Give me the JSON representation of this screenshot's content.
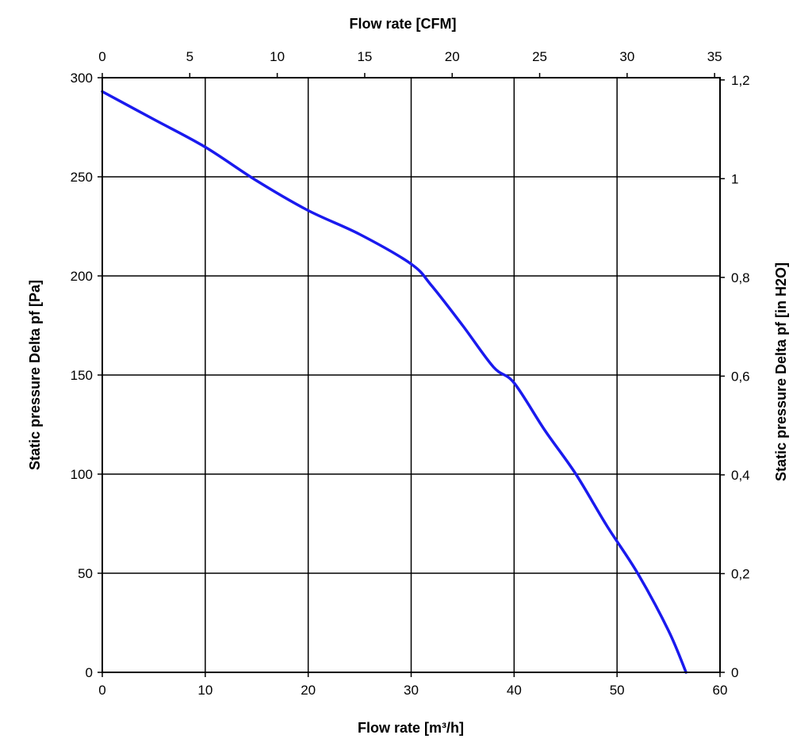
{
  "chart_data": {
    "type": "line",
    "x_bottom": {
      "label": "Flow rate [m³/h]",
      "range": [
        0,
        60
      ],
      "ticks": [
        0,
        10,
        20,
        30,
        40,
        50,
        60
      ],
      "tick_labels": [
        "0",
        "10",
        "20",
        "30",
        "40",
        "50",
        "60"
      ]
    },
    "x_top": {
      "label": "Flow rate [CFM]",
      "range": [
        0,
        35.31
      ],
      "ticks": [
        0,
        5,
        10,
        15,
        20,
        25,
        30,
        35
      ],
      "tick_labels": [
        "0",
        "5",
        "10",
        "15",
        "20",
        "25",
        "30",
        "35"
      ]
    },
    "y_left": {
      "label": "Static pressure Delta pf [Pa]",
      "range": [
        0,
        300
      ],
      "ticks": [
        0,
        50,
        100,
        150,
        200,
        250,
        300
      ],
      "tick_labels": [
        "0",
        "50",
        "100",
        "150",
        "200",
        "250",
        "300"
      ]
    },
    "y_right": {
      "label": "Static pressure Delta pf [in H2O]",
      "range": [
        0,
        1.2045
      ],
      "ticks": [
        0,
        0.2,
        0.4,
        0.6,
        0.8,
        1,
        1.2
      ],
      "tick_labels": [
        "0",
        "0,2",
        "0,4",
        "0,6",
        "0,8",
        "1",
        "1,2"
      ]
    },
    "grid": true,
    "series": [
      {
        "color": "#1a1aee",
        "x": [
          0,
          5,
          10,
          15,
          20,
          25,
          30,
          32,
          35,
          38,
          40,
          43,
          46,
          49,
          52,
          55,
          56.7
        ],
        "y": [
          293,
          279,
          265,
          248,
          233,
          221,
          206,
          195,
          175,
          154,
          146,
          122,
          100,
          74,
          50,
          21,
          0
        ]
      }
    ]
  }
}
